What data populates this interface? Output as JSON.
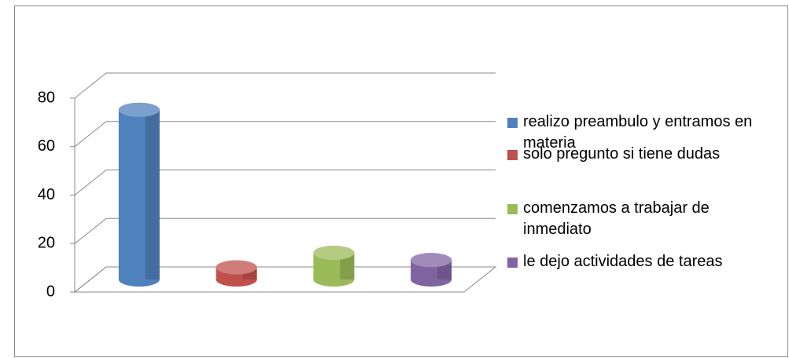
{
  "chart_data": {
    "type": "bar3d",
    "categories": [
      null
    ],
    "series": [
      {
        "name": "realizo preambulo y entramos en materia",
        "color": "#4f81bd",
        "values": [
          70
        ]
      },
      {
        "name": "solo pregunto si tiene dudas",
        "color": "#c0504d",
        "values": [
          5
        ]
      },
      {
        "name": "comenzamos a trabajar de inmediato",
        "color": "#9bbb59",
        "values": [
          11
        ]
      },
      {
        "name": "le dejo actividades de tareas",
        "color": "#8064a2",
        "values": [
          8
        ]
      }
    ],
    "ylim": [
      0,
      80
    ],
    "yticks": [
      0,
      20,
      40,
      60,
      80
    ],
    "grid": true,
    "legend": "right"
  }
}
